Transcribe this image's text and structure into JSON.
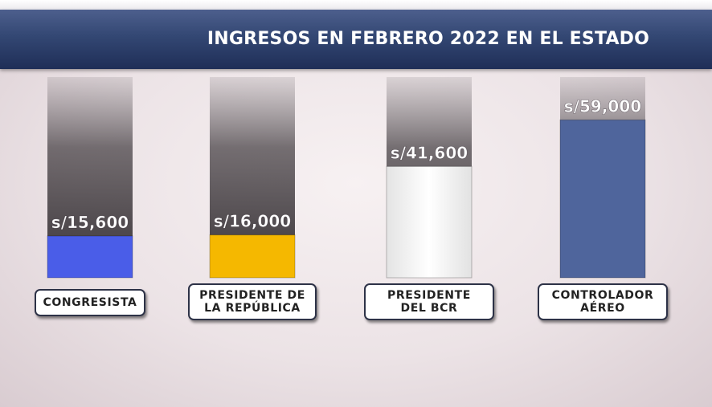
{
  "header": {
    "title": "INGRESOS EN FEBRERO 2022 EN EL ESTADO"
  },
  "chart_data": {
    "type": "bar",
    "title": "INGRESOS EN FEBRERO 2022 EN EL ESTADO",
    "categories": [
      "CONGRESISTA",
      "PRESIDENTE DE\nLA REPÚBLICA",
      "PRESIDENTE\nDEL BCR",
      "CONTROLADOR\nAÉREO"
    ],
    "values": [
      15600,
      16000,
      41600,
      59000
    ],
    "value_labels": [
      "s/15,600",
      "s/16,000",
      "s/41,600",
      "s/59,000"
    ],
    "colors": [
      "#4a5de8",
      "#f5b800",
      "#f4f4f4",
      "#4f659c"
    ],
    "ylim": [
      0,
      75000
    ],
    "grid": false,
    "legend": "none"
  }
}
